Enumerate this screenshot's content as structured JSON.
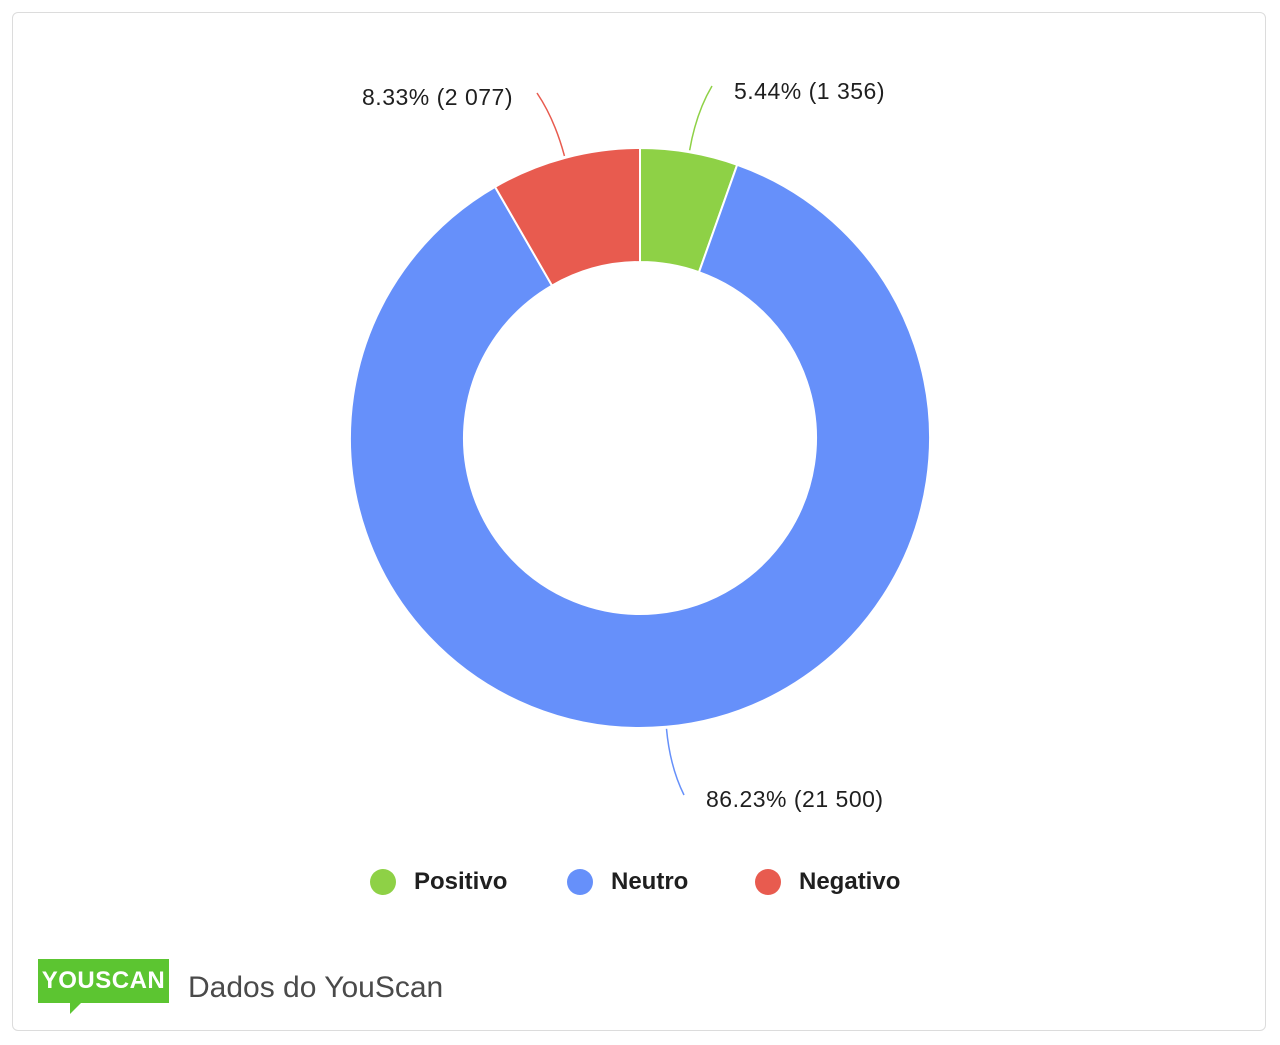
{
  "chart_data": {
    "type": "pie",
    "donut": true,
    "categories": [
      "Positivo",
      "Neutro",
      "Negativo"
    ],
    "values": [
      1356,
      21500,
      2077
    ],
    "percentages": [
      5.44,
      86.23,
      8.33
    ],
    "slice_labels": [
      "5.44% (1 356)",
      "86.23% (21 500)",
      "8.33% (2 077)"
    ],
    "colors": [
      "#8ed146",
      "#6690fa",
      "#e85b4f"
    ],
    "legend": {
      "placement": "bottom",
      "items": [
        {
          "label": "Positivo",
          "color": "#8ed146"
        },
        {
          "label": "Neutro",
          "color": "#6690fa"
        },
        {
          "label": "Negativo",
          "color": "#e85b4f"
        }
      ]
    }
  },
  "footer": {
    "logo_text": "YOUSCAN",
    "logo_color": "#5cc531",
    "source_text": "Dados do YouScan"
  }
}
